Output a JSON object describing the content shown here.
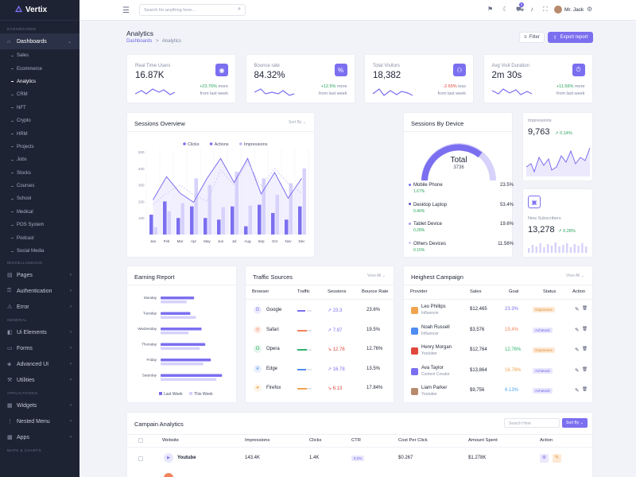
{
  "app": {
    "name": "Vertix"
  },
  "topbar": {
    "search_placeholder": "Search for anything here...",
    "user_name": "Mr. Jack",
    "cart_count": "5"
  },
  "sidebar": {
    "section_dashboards": "DASHBOARDS",
    "dashboards_label": "Dashboards",
    "sub_items": [
      "Sales",
      "Ecommerce",
      "Analytics",
      "CRM",
      "NFT",
      "Crypto",
      "HRM",
      "Projects",
      "Jobs",
      "Stocks",
      "Courses",
      "School",
      "Medical",
      "POS System",
      "Podcast",
      "Social Media"
    ],
    "section_misc": "MISCELLANEOUS",
    "misc_items": [
      "Pages",
      "Authentication",
      "Error"
    ],
    "section_general": "GENERAL",
    "general_items": [
      "Ui Elements",
      "Forms",
      "Advanced UI",
      "Utilities"
    ],
    "section_apps": "APPLICATIONS",
    "app_items": [
      "Widgets",
      "Nested Menu",
      "Apps"
    ],
    "section_maps": "MAPS & CHARTS"
  },
  "page": {
    "title": "Analytics",
    "crumb_root": "Dashboards",
    "crumb_sep": ">",
    "crumb_current": "Analytics",
    "filter_label": "Filter",
    "export_label": "Export report"
  },
  "stats": [
    {
      "label": "Real Time Users",
      "value": "16.87K",
      "change": "+23.76%",
      "dir": "up",
      "suffix": "more",
      "note": "from last week",
      "icon": "eye-icon"
    },
    {
      "label": "Bounce rate",
      "value": "84.32%",
      "change": "+12.5%",
      "dir": "up",
      "suffix": "more",
      "note": "from last week",
      "icon": "percent-icon"
    },
    {
      "label": "Total Visitors",
      "value": "18,382",
      "change": "-2.65%",
      "dir": "down",
      "suffix": "less",
      "note": "from last week",
      "icon": "users-icon"
    },
    {
      "label": "Avg Visit Duration",
      "value": "2m 30s",
      "change": "+11.56%",
      "dir": "up",
      "suffix": "more",
      "note": "from last week",
      "icon": "timer-icon"
    }
  ],
  "sessions_overview": {
    "title": "Sessions Overview",
    "sort": "Sort By"
  },
  "sessions_device": {
    "title": "Sessions By Device",
    "total_label": "Total",
    "total_value": "3736",
    "rows": [
      {
        "name": "Mobile Phone",
        "pct": "23.5%",
        "change": "1.67%"
      },
      {
        "name": "Desktop Laptop",
        "pct": "53.4%",
        "change": "0.46%"
      },
      {
        "name": "Tablet Device",
        "pct": "19.6%",
        "change": "0.28%"
      },
      {
        "name": "Others Devices",
        "pct": "11.56%",
        "change": "0.15%"
      }
    ]
  },
  "impressions": {
    "label": "Impressions",
    "value": "9,763",
    "change": "0.14%"
  },
  "subscribers": {
    "label": "New Subscribers",
    "value": "13,278",
    "change": "0.28%"
  },
  "earning": {
    "title": "Earning Report",
    "legend": [
      "Last Week",
      "This Week"
    ]
  },
  "traffic": {
    "title": "Traffic Sources",
    "view_all": "View All",
    "headers": [
      "Browser",
      "Traffic",
      "Sessions",
      "Bounce Rate"
    ],
    "rows": [
      {
        "name": "Google",
        "sessions": "23.3",
        "bounce": "23.6%",
        "dir": "up",
        "color": "#7b6ff0",
        "icon": "google-icon"
      },
      {
        "name": "Safari",
        "sessions": "7.87",
        "bounce": "19.5%",
        "dir": "up",
        "color": "#f0845a",
        "icon": "safari-icon"
      },
      {
        "name": "Opera",
        "sessions": "12.76",
        "bounce": "12.76%",
        "dir": "down",
        "color": "#2fb36a",
        "icon": "opera-icon"
      },
      {
        "name": "Edge",
        "sessions": "16.78",
        "bounce": "13.5%",
        "dir": "up",
        "color": "#4f8ef0",
        "icon": "edge-icon"
      },
      {
        "name": "Firefox",
        "sessions": "6.13",
        "bounce": "17.84%",
        "dir": "down",
        "color": "#f0a44f",
        "icon": "firefox-icon"
      }
    ]
  },
  "campaign": {
    "title": "Heighest Campaign",
    "view_all": "View All",
    "headers": [
      "Provider",
      "Sales",
      "Goal",
      "Status",
      "Action"
    ],
    "rows": [
      {
        "name": "Leo Phillips",
        "role": "Influencer",
        "sales": "$12,465",
        "goal": "23.3%",
        "status": "Onprocess",
        "goal_color": "#7b6ff0"
      },
      {
        "name": "Noah Russell",
        "role": "Influencer",
        "sales": "$3,576",
        "goal": "19.4%",
        "status": "Achieved",
        "goal_color": "#f0845a"
      },
      {
        "name": "Henry Morgan",
        "role": "Youtuber",
        "sales": "$12,764",
        "goal": "12.76%",
        "status": "Onprocess",
        "goal_color": "#2fb36a"
      },
      {
        "name": "Ava Taylor",
        "role": "Content Creator",
        "sales": "$13,864",
        "goal": "16.78%",
        "status": "Achieved",
        "goal_color": "#f0a44f"
      },
      {
        "name": "Liam Parker",
        "role": "Youtuber",
        "sales": "$9,756",
        "goal": "6.13%",
        "status": "Achieved",
        "goal_color": "#4fa6e6"
      }
    ]
  },
  "campaign_analytics": {
    "title": "Campain Analytics",
    "search_placeholder": "Search Here",
    "sort": "Sort By",
    "headers": [
      "Website",
      "Impressions",
      "Clicks",
      "CTR",
      "Cost Per Click",
      "Amount Spent",
      "Action"
    ],
    "rows": [
      {
        "website": "Youtube",
        "impressions": "143.4K",
        "clicks": "1.4K",
        "ctr": "9.2%",
        "cpc": "$0.267",
        "spent": "$1.278K"
      }
    ]
  },
  "chart_data": [
    {
      "type": "bar-line",
      "title": "Sessions Overview",
      "categories": [
        "Jan",
        "Feb",
        "Mar",
        "Apr",
        "May",
        "Jun",
        "Jul",
        "Aug",
        "Sep",
        "Oct",
        "Nov",
        "Dec"
      ],
      "ylim": [
        0,
        500
      ],
      "yticks": [
        "500",
        "400",
        "300",
        "200",
        "100"
      ],
      "legend": "top",
      "series": [
        {
          "name": "Clicks",
          "type": "bar",
          "color": "#7b6ff0",
          "values": [
            120,
            200,
            100,
            170,
            100,
            90,
            170,
            50,
            180,
            130,
            90,
            170
          ]
        },
        {
          "name": "Actions",
          "type": "area",
          "color": "#7b6ff0",
          "values": [
            210,
            350,
            250,
            195,
            340,
            460,
            315,
            460,
            245,
            375,
            220,
            340
          ]
        },
        {
          "name": "Impressions",
          "type": "bar",
          "color": "#d6d2fb",
          "values": [
            45,
            140,
            190,
            340,
            300,
            165,
            380,
            175,
            340,
            240,
            310,
            400
          ]
        }
      ]
    },
    {
      "type": "bar",
      "title": "Earning Report",
      "orientation": "horizontal",
      "categories": [
        "Monday",
        "Tuesday",
        "Wednesday",
        "Thursday",
        "Friday",
        "Saturday"
      ],
      "series": [
        {
          "name": "Last Week",
          "color": "#7b6ff0",
          "values": [
            36,
            32,
            44,
            48,
            54,
            66
          ]
        },
        {
          "name": "This Week",
          "color": "#d6d2fb",
          "values": [
            28,
            38,
            30,
            42,
            46,
            60
          ]
        }
      ]
    }
  ]
}
